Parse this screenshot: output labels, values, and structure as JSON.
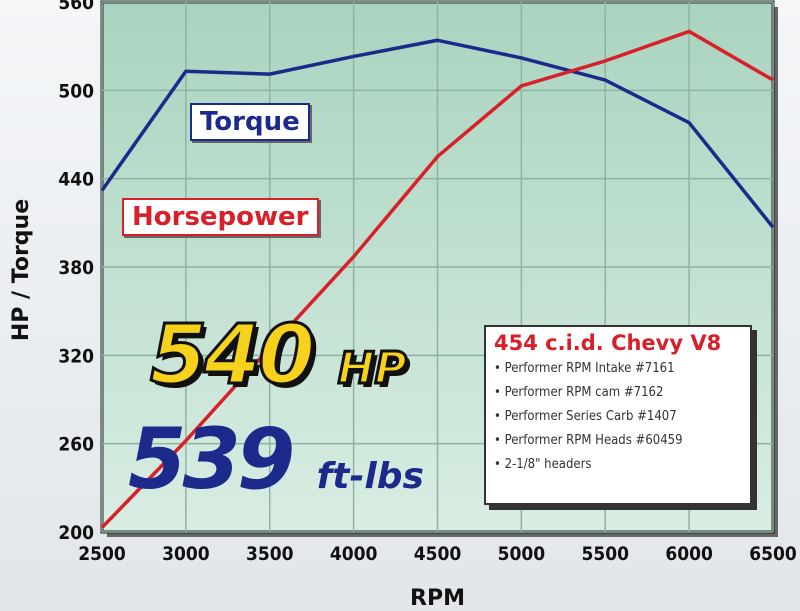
{
  "chart_data": {
    "type": "line",
    "xlabel": "RPM",
    "ylabel": "HP / Torque",
    "x": [
      2500,
      3000,
      3500,
      4000,
      4500,
      5000,
      5500,
      6000,
      6500
    ],
    "xlim": [
      2500,
      6500
    ],
    "ylim": [
      200,
      560
    ],
    "xticks": [
      "2500",
      "3000",
      "3500",
      "4000",
      "4500",
      "5000",
      "5500",
      "6000",
      "6500"
    ],
    "yticks": [
      "200",
      "260",
      "320",
      "380",
      "440",
      "500",
      "560"
    ],
    "grid": true,
    "series": [
      {
        "name": "Torque",
        "color": "#1c2a8c",
        "values": [
          432,
          513,
          511,
          523,
          534,
          522,
          507,
          478,
          407
        ]
      },
      {
        "name": "Horsepower",
        "color": "#d8202a",
        "values": [
          203,
          262,
          325,
          387,
          455,
          503,
          520,
          540,
          507
        ]
      }
    ],
    "annotations": {
      "hp_value": "540",
      "hp_unit": "HP",
      "torque_value": "539",
      "torque_unit": "ft-lbs"
    },
    "info_box": {
      "title": "454 c.i.d. Chevy V8",
      "items": [
        "• Performer RPM Intake #7161",
        "• Performer RPM cam #7162",
        "• Performer Series Carb #1407",
        "• Performer RPM Heads #60459",
        "• 2-1/8\" headers"
      ]
    }
  }
}
